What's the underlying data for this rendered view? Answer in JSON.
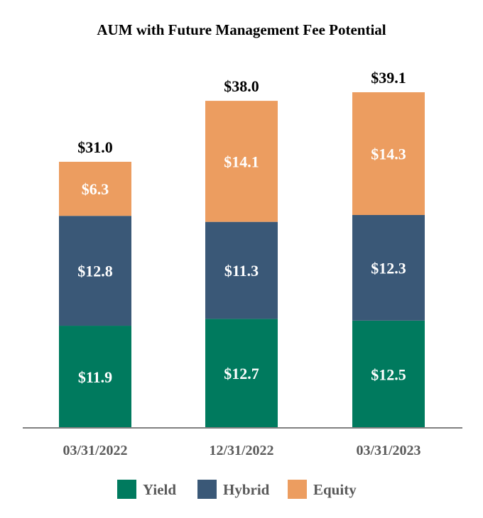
{
  "chart_data": {
    "type": "bar",
    "stacked": true,
    "title": "AUM with Future Management Fee Potential",
    "xlabel": "",
    "ylabel": "",
    "categories": [
      "03/31/2022",
      "12/31/2022",
      "03/31/2023"
    ],
    "series": [
      {
        "name": "Yield",
        "color": "#007A5E",
        "values": [
          11.9,
          12.7,
          12.5
        ],
        "labels": [
          "$11.9",
          "$12.7",
          "$12.5"
        ]
      },
      {
        "name": "Hybrid",
        "color": "#3A5877",
        "values": [
          12.8,
          11.3,
          12.3
        ],
        "labels": [
          "$12.8",
          "$11.3",
          "$12.3"
        ]
      },
      {
        "name": "Equity",
        "color": "#EC9D60",
        "values": [
          6.3,
          14.1,
          14.3
        ],
        "labels": [
          "$6.3",
          "$14.1",
          "$14.3"
        ]
      }
    ],
    "totals": [
      31.0,
      38.0,
      39.1
    ],
    "total_labels": [
      "$31.0",
      "$38.0",
      "$39.1"
    ],
    "ylim": [
      0,
      39.1
    ],
    "grid": false,
    "legend": "bottom"
  }
}
